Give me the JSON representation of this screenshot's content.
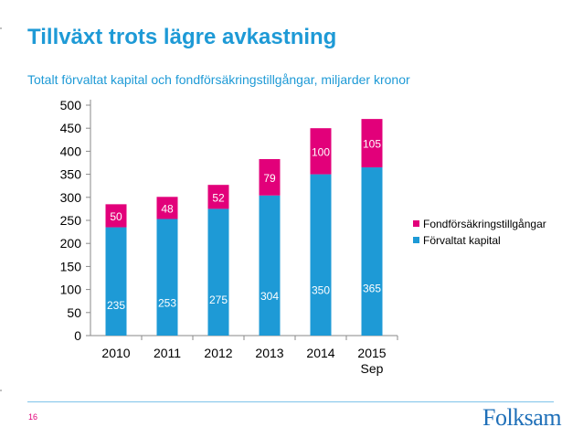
{
  "slide": {
    "title": "Tillväxt trots lägre avkastning",
    "subtitle": "Totalt förvaltat kapital och fondförsäkringstillgångar, miljarder kronor",
    "page_number": "16",
    "logo_text": "Folksam"
  },
  "colors": {
    "title": "#1e9ad6",
    "forvaltat": "#1e9ad6",
    "fond": "#e2007a",
    "axis": "#8a8a8a"
  },
  "chart_data": {
    "type": "bar",
    "stacked": true,
    "categories": [
      [
        "2010"
      ],
      [
        "2011"
      ],
      [
        "2012"
      ],
      [
        "2013"
      ],
      [
        "2014"
      ],
      [
        "2015",
        "Sep"
      ]
    ],
    "series": [
      {
        "name": "Förvaltat kapital",
        "values": [
          235,
          253,
          275,
          304,
          350,
          365
        ]
      },
      {
        "name": "Fondförsäkringstillgångar",
        "values": [
          50,
          48,
          52,
          79,
          100,
          105
        ]
      }
    ],
    "ylim": [
      0,
      500
    ],
    "yticks": [
      0,
      50,
      100,
      150,
      200,
      250,
      300,
      350,
      400,
      450,
      500
    ],
    "legend": [
      "Fondförsäkringstillgångar",
      "Förvaltat kapital"
    ],
    "legend_position": "right",
    "title": "",
    "xlabel": "",
    "ylabel": ""
  }
}
